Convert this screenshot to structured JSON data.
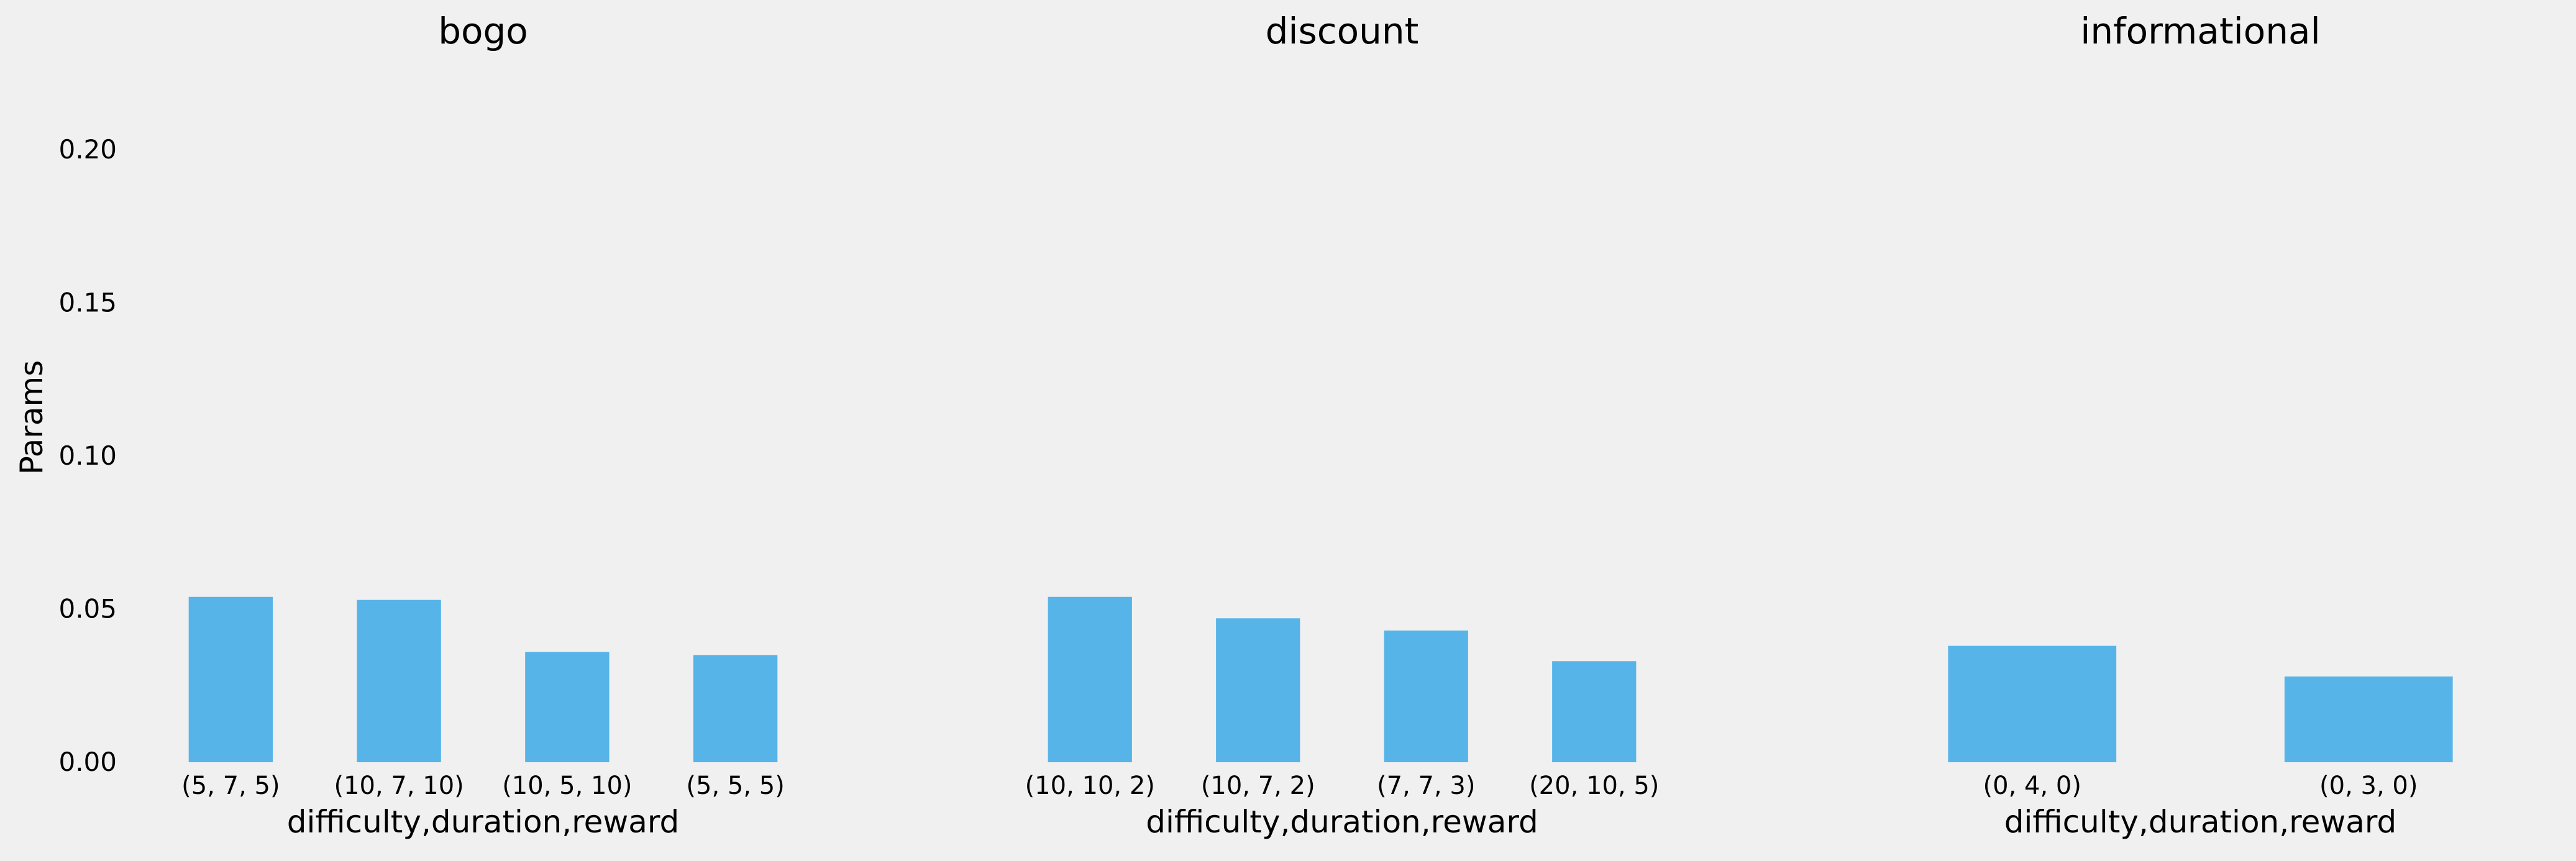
{
  "chart_data": [
    {
      "type": "bar",
      "title": "bogo",
      "xlabel": "difficulty,duration,reward",
      "ylabel": "Params",
      "ylim": [
        0,
        0.22
      ],
      "yticks": [
        "0.00",
        "0.05",
        "0.10",
        "0.15",
        "0.20"
      ],
      "categories": [
        "(5, 7, 5)",
        "(10, 7, 10)",
        "(10, 5, 10)",
        "(5, 5, 5)"
      ],
      "values": [
        0.054,
        0.053,
        0.036,
        0.035
      ],
      "bar_color": "#56b4e9",
      "grid": false
    },
    {
      "type": "bar",
      "title": "discount",
      "xlabel": "difficulty,duration,reward",
      "ylabel": "",
      "ylim": [
        0,
        0.22
      ],
      "categories": [
        "(10, 10, 2)",
        "(10, 7, 2)",
        "(7, 7, 3)",
        "(20, 10, 5)"
      ],
      "values": [
        0.054,
        0.047,
        0.043,
        0.033
      ],
      "bar_color": "#56b4e9",
      "grid": false
    },
    {
      "type": "bar",
      "title": "informational",
      "xlabel": "difficulty,duration,reward",
      "ylabel": "",
      "ylim": [
        0,
        0.22
      ],
      "categories": [
        "(0, 4, 0)",
        "(0, 3, 0)"
      ],
      "values": [
        0.038,
        0.028
      ],
      "bar_color": "#56b4e9",
      "grid": false
    }
  ]
}
